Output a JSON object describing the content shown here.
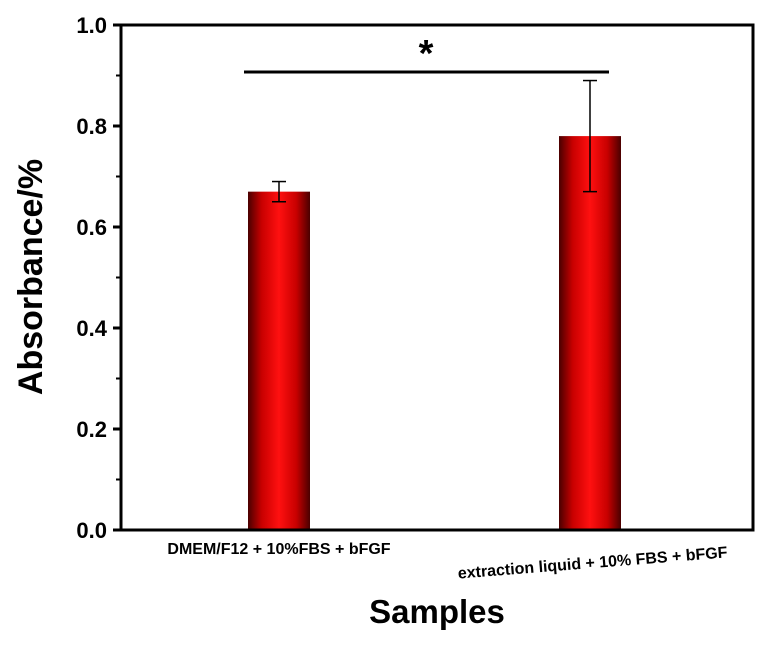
{
  "chart_data": {
    "type": "bar",
    "categories": [
      "DMEM/F12 + 10%FBS + bFGF",
      "extraction liquid + 10% FBS + bFGF"
    ],
    "values": [
      0.67,
      0.78
    ],
    "errors": [
      0.02,
      0.11
    ],
    "ylabel": "Absorbance/%",
    "xlabel": "Samples",
    "ylim": [
      0.0,
      1.0
    ],
    "yticks": [
      "0.0",
      "0.2",
      "0.4",
      "0.6",
      "0.8",
      "1.0"
    ],
    "significance": {
      "between": [
        0,
        1
      ],
      "label": "*"
    },
    "bar_color": "#e00000",
    "grid": false,
    "legend": "none"
  }
}
